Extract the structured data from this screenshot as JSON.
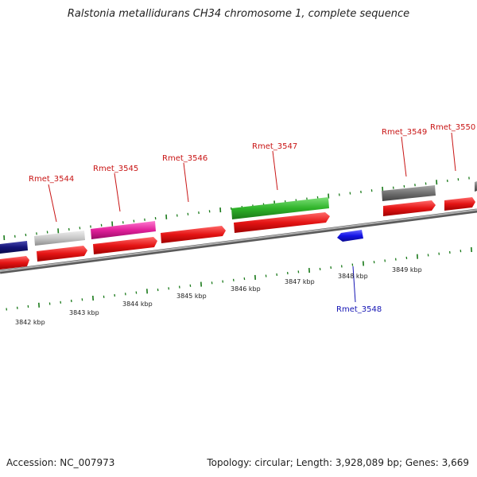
{
  "title": "Ralstonia metallidurans CH34 chromosome 1, complete sequence",
  "footer": {
    "accession": "Accession: NC_007973",
    "summary": "Topology: circular; Length: 3,928,089 bp; Genes: 3,669"
  },
  "colors": {
    "red": "#e41414",
    "green": "#2fb32a",
    "magenta": "#e0209a",
    "navy": "#141478",
    "silver": "#c8c8c8",
    "gray": "#707070",
    "blue": "#1414e6",
    "tick": "#1a7a1a",
    "label_red": "#c81414",
    "label_blue": "#1414b4"
  },
  "kbp_labels": [
    "3842 kbp",
    "3843 kbp",
    "3844 kbp",
    "3845 kbp",
    "3846 kbp",
    "3847 kbp",
    "3848 kbp",
    "3849 kbp"
  ],
  "gene_labels": [
    "Rmet_3544",
    "Rmet_3545",
    "Rmet_3546",
    "Rmet_3547",
    "Rmet_3548",
    "Rmet_3549",
    "Rmet_3550"
  ]
}
